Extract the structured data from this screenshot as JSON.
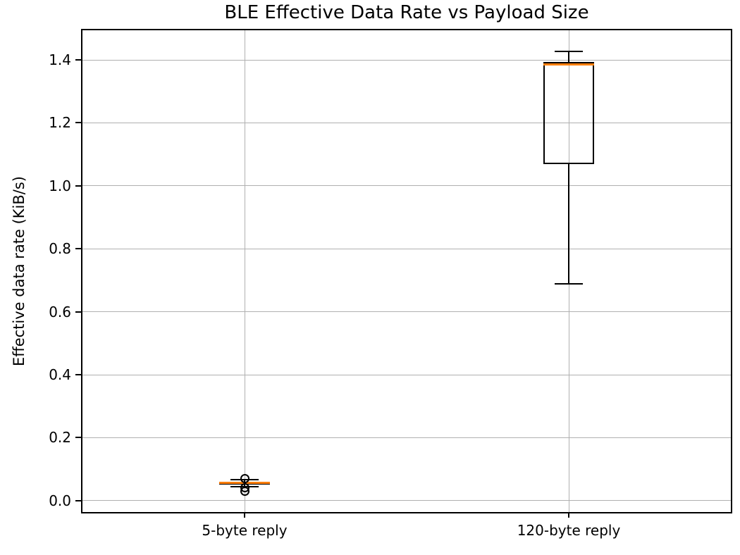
{
  "chart_data": {
    "type": "boxplot",
    "title": "BLE Effective Data Rate vs Payload Size",
    "xlabel": "",
    "ylabel": "Effective data rate (KiB/s)",
    "categories": [
      "5-byte reply",
      "120-byte reply"
    ],
    "ytick_values": [
      0.0,
      0.2,
      0.4,
      0.6,
      0.8,
      1.0,
      1.2,
      1.4
    ],
    "ytick_labels": [
      "0.0",
      "0.2",
      "0.4",
      "0.6",
      "0.8",
      "1.0",
      "1.2",
      "1.4"
    ],
    "ylim": [
      -0.036,
      1.494
    ],
    "grid": true,
    "legend": "none",
    "colors": {
      "median": "#ff7f0e",
      "box_edge": "#000000",
      "grid": "#b0b0b0",
      "background": "#ffffff"
    },
    "series": [
      {
        "name": "5-byte reply",
        "whisker_low": 0.045,
        "q1": 0.051,
        "median": 0.057,
        "q3": 0.061,
        "whisker_high": 0.066,
        "outliers": [
          0.071,
          0.042,
          0.029
        ]
      },
      {
        "name": "120-byte reply",
        "whisker_low": 0.689,
        "q1": 1.069,
        "median": 1.386,
        "q3": 1.394,
        "whisker_high": 1.428,
        "outliers": []
      }
    ]
  }
}
